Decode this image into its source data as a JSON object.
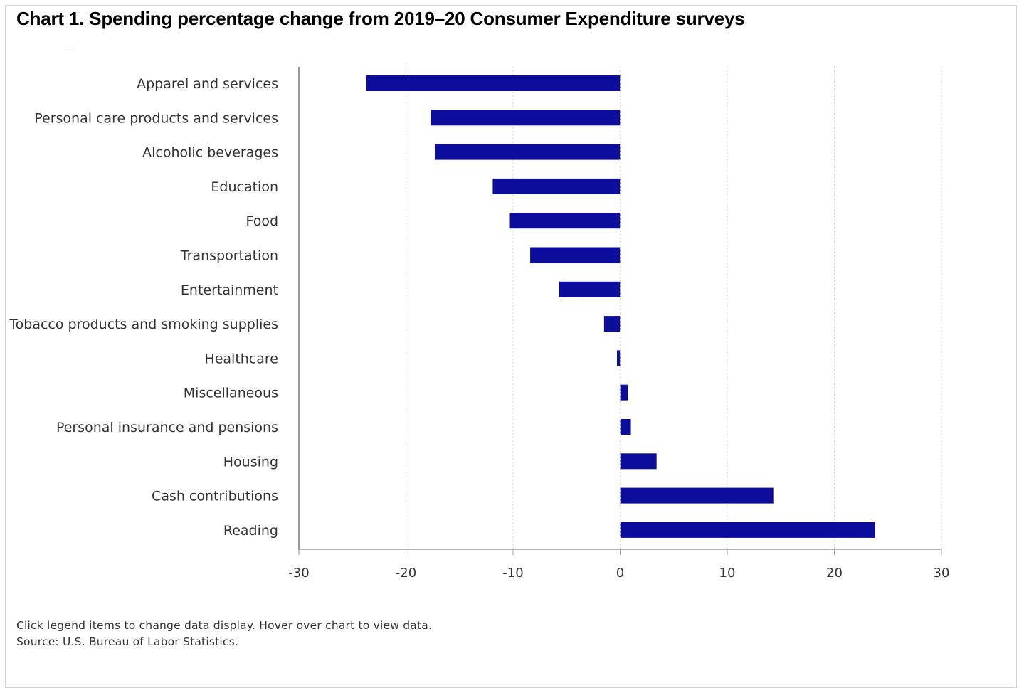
{
  "header": {
    "title": "Chart 1. Spending percentage change from 2019–20 Consumer Expenditure surveys"
  },
  "footer": {
    "instructions": "Click legend items to change data display. Hover over chart to view data.",
    "source": "Source: U.S. Bureau of Labor Statistics."
  },
  "chart_data": {
    "type": "bar",
    "orientation": "horizontal",
    "categories": [
      "Apparel and services",
      "Personal care products and services",
      "Alcoholic beverages",
      "Education",
      "Food",
      "Transportation",
      "Entertainment",
      "Tobacco products and smoking supplies",
      "Healthcare",
      "Miscellaneous",
      "Personal insurance and pensions",
      "Housing",
      "Cash contributions",
      "Reading"
    ],
    "values": [
      -23.7,
      -17.7,
      -17.3,
      -11.9,
      -10.3,
      -8.4,
      -5.7,
      -1.5,
      -0.3,
      0.7,
      1.0,
      3.4,
      14.3,
      23.8
    ],
    "xlim": [
      -30,
      30
    ],
    "xticks": [
      -30,
      -20,
      -10,
      0,
      10,
      20,
      30
    ],
    "grid": "vertical dotted",
    "bar_color": "#0d0d9c",
    "title": "Chart 1. Spending percentage change from 2019–20 Consumer Expenditure surveys",
    "xlabel": "",
    "ylabel": ""
  }
}
